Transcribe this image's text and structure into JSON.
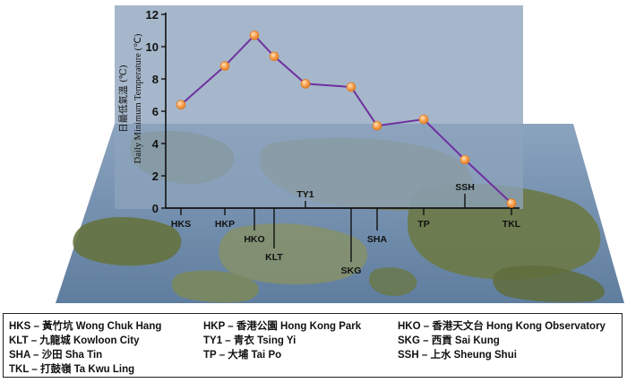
{
  "chart_data": {
    "type": "line",
    "ylabel_chinese": "日最低氣溫 (℃)",
    "ylabel": "Daily Minimum Temperature (℃)",
    "ylim": [
      0,
      12
    ],
    "yticks": [
      0,
      2,
      4,
      6,
      8,
      10,
      12
    ],
    "categories": [
      "HKS",
      "HKP",
      "HKO",
      "KLT",
      "TY1",
      "SKG",
      "SHA",
      "TP",
      "SSH",
      "TKL"
    ],
    "values": [
      6.4,
      8.8,
      10.7,
      9.4,
      7.7,
      7.5,
      5.1,
      5.5,
      3.0,
      0.3
    ],
    "colors": {
      "line": "#7030a0",
      "marker": "#f79646",
      "plot_bg": "#8da3bd",
      "map_water": "#6f8aa8",
      "map_land": "#6e7a52"
    }
  },
  "legend": [
    {
      "code": "HKS",
      "text": " – 黃竹坑 Wong Chuk Hang"
    },
    {
      "code": "HKP",
      "text": " – 香港公園 Hong Kong Park"
    },
    {
      "code": "HKO",
      "text": " – 香港天文台 Hong Kong Observatory"
    },
    {
      "code": "KLT",
      "text": " – 九龍城 Kowloon City"
    },
    {
      "code": "TY1",
      "text": " – 青衣 Tsing Yi"
    },
    {
      "code": "SKG",
      "text": " – 西貢 Sai Kung"
    },
    {
      "code": "SHA",
      "text": " – 沙田 Sha Tin"
    },
    {
      "code": "TP",
      "text": " – 大埔 Tai Po"
    },
    {
      "code": "SSH",
      "text": " – 上水 Sheung Shui"
    },
    {
      "code": "TKL",
      "text": " – 打鼓嶺 Ta Kwu Ling"
    }
  ]
}
